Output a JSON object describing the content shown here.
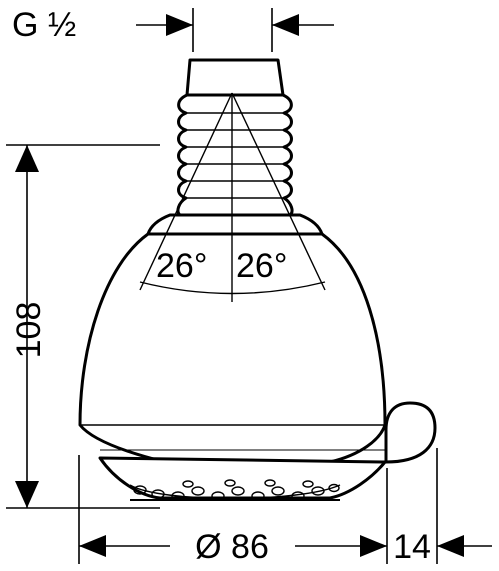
{
  "labels": {
    "thread": "G ½",
    "angle_left": "26°",
    "angle_right": "26°",
    "height": "108",
    "diameter": "Ø 86",
    "depth": "14"
  }
}
